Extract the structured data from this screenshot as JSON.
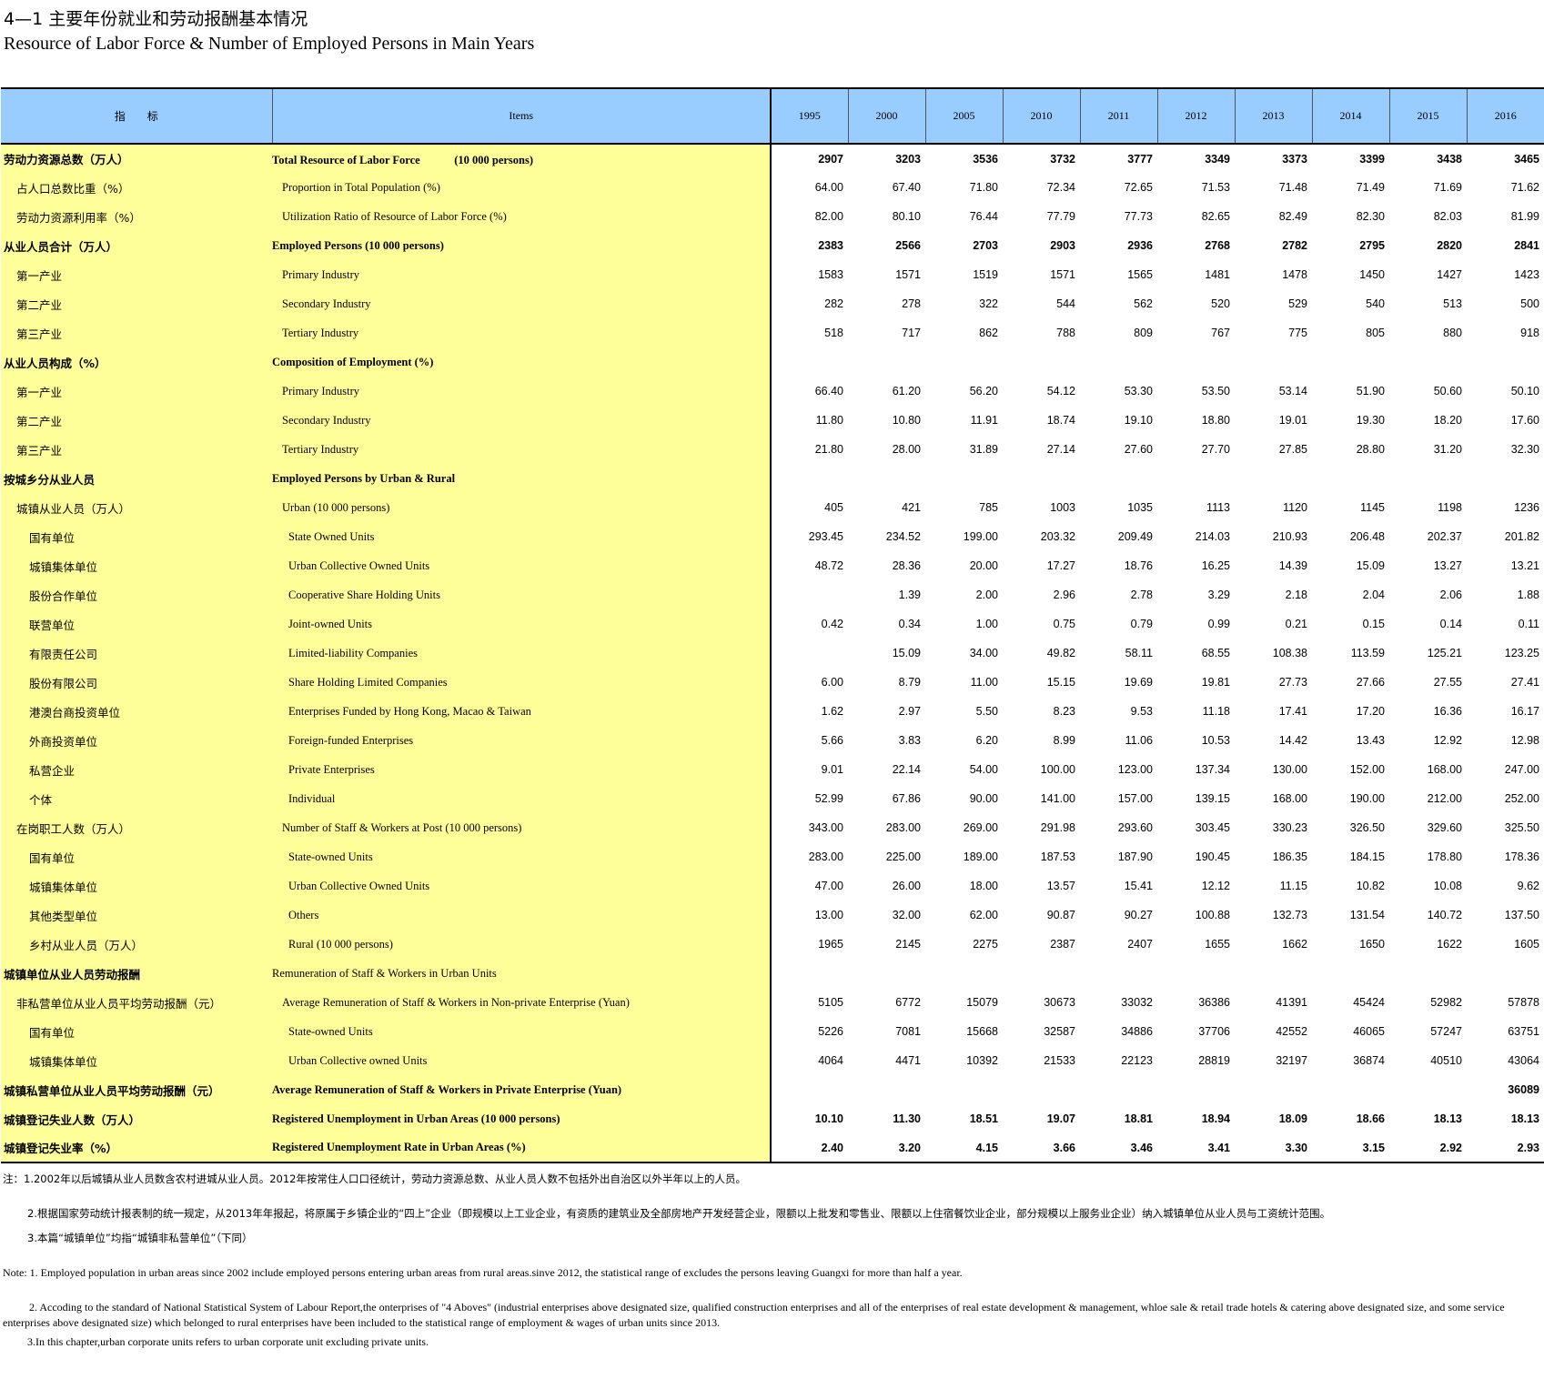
{
  "title_cn": "4—1  主要年份就业和劳动报酬基本情况",
  "title_en": "Resource of Labor Force & Number of Employed Persons in Main Years",
  "header": {
    "indicator_cn": "指　　标",
    "items_en": "Items",
    "years": [
      "1995",
      "2000",
      "2005",
      "2010",
      "2011",
      "2012",
      "2013",
      "2014",
      "2015",
      "2016"
    ]
  },
  "rows": [
    {
      "cn": "劳动力资源总数（万人）",
      "en": "Total Resource of Labor Force　　　(10 000 persons)",
      "indent": 0,
      "bold": true,
      "values": [
        "2907",
        "3203",
        "3536",
        "3732",
        "3777",
        "3349",
        "3373",
        "3399",
        "3438",
        "3465"
      ]
    },
    {
      "cn": "占人口总数比重（%）",
      "en": "Proportion in Total Population (%)",
      "indent": 1,
      "bold": false,
      "values": [
        "64.00",
        "67.40",
        "71.80",
        "72.34",
        "72.65",
        "71.53",
        "71.48",
        "71.49",
        "71.69",
        "71.62"
      ]
    },
    {
      "cn": "劳动力资源利用率（%）",
      "en": "Utilization Ratio of Resource of Labor Force (%)",
      "indent": 1,
      "bold": false,
      "values": [
        "82.00",
        "80.10",
        "76.44",
        "77.79",
        "77.73",
        "82.65",
        "82.49",
        "82.30",
        "82.03",
        "81.99"
      ]
    },
    {
      "cn": "从业人员合计（万人）",
      "en": "Employed Persons (10 000 persons)",
      "indent": 0,
      "bold": true,
      "values": [
        "2383",
        "2566",
        "2703",
        "2903",
        "2936",
        "2768",
        "2782",
        "2795",
        "2820",
        "2841"
      ]
    },
    {
      "cn": "第一产业",
      "en": "Primary Industry",
      "indent": 1,
      "bold": false,
      "values": [
        "1583",
        "1571",
        "1519",
        "1571",
        "1565",
        "1481",
        "1478",
        "1450",
        "1427",
        "1423"
      ]
    },
    {
      "cn": "第二产业",
      "en": "Secondary Industry",
      "indent": 1,
      "bold": false,
      "values": [
        "282",
        "278",
        "322",
        "544",
        "562",
        "520",
        "529",
        "540",
        "513",
        "500"
      ]
    },
    {
      "cn": "第三产业",
      "en": "Tertiary Industry",
      "indent": 1,
      "bold": false,
      "values": [
        "518",
        "717",
        "862",
        "788",
        "809",
        "767",
        "775",
        "805",
        "880",
        "918"
      ]
    },
    {
      "cn": "从业人员构成（%）",
      "en": "Composition of Employment (%)",
      "indent": 0,
      "bold": true,
      "values": [
        "",
        "",
        "",
        "",
        "",
        "",
        "",
        "",
        "",
        ""
      ]
    },
    {
      "cn": "第一产业",
      "en": "Primary Industry",
      "indent": 1,
      "bold": false,
      "values": [
        "66.40",
        "61.20",
        "56.20",
        "54.12",
        "53.30",
        "53.50",
        "53.14",
        "51.90",
        "50.60",
        "50.10"
      ]
    },
    {
      "cn": "第二产业",
      "en": "Secondary Industry",
      "indent": 1,
      "bold": false,
      "values": [
        "11.80",
        "10.80",
        "11.91",
        "18.74",
        "19.10",
        "18.80",
        "19.01",
        "19.30",
        "18.20",
        "17.60"
      ]
    },
    {
      "cn": "第三产业",
      "en": "Tertiary Industry",
      "indent": 1,
      "bold": false,
      "values": [
        "21.80",
        "28.00",
        "31.89",
        "27.14",
        "27.60",
        "27.70",
        "27.85",
        "28.80",
        "31.20",
        "32.30"
      ]
    },
    {
      "cn": "按城乡分从业人员",
      "en": "Employed Persons by Urban & Rural",
      "indent": 0,
      "bold": true,
      "values": [
        "",
        "",
        "",
        "",
        "",
        "",
        "",
        "",
        "",
        ""
      ]
    },
    {
      "cn": "城镇从业人员（万人）",
      "en": "Urban (10 000 persons)",
      "indent": 1,
      "bold": false,
      "values": [
        "405",
        "421",
        "785",
        "1003",
        "1035",
        "1113",
        "1120",
        "1145",
        "1198",
        "1236"
      ]
    },
    {
      "cn": "国有单位",
      "en": "State Owned Units",
      "indent": 2,
      "bold": false,
      "values": [
        "293.45",
        "234.52",
        "199.00",
        "203.32",
        "209.49",
        "214.03",
        "210.93",
        "206.48",
        "202.37",
        "201.82"
      ]
    },
    {
      "cn": "城镇集体单位",
      "en": "Urban Collective Owned Units",
      "indent": 2,
      "bold": false,
      "values": [
        "48.72",
        "28.36",
        "20.00",
        "17.27",
        "18.76",
        "16.25",
        "14.39",
        "15.09",
        "13.27",
        "13.21"
      ]
    },
    {
      "cn": "股份合作单位",
      "en": "Cooperative Share Holding Units",
      "indent": 2,
      "bold": false,
      "values": [
        "",
        "1.39",
        "2.00",
        "2.96",
        "2.78",
        "3.29",
        "2.18",
        "2.04",
        "2.06",
        "1.88"
      ]
    },
    {
      "cn": "联营单位",
      "en": "Joint-owned Units",
      "indent": 2,
      "bold": false,
      "values": [
        "0.42",
        "0.34",
        "1.00",
        "0.75",
        "0.79",
        "0.99",
        "0.21",
        "0.15",
        "0.14",
        "0.11"
      ]
    },
    {
      "cn": "有限责任公司",
      "en": "Limited-liability Companies",
      "indent": 2,
      "bold": false,
      "values": [
        "",
        "15.09",
        "34.00",
        "49.82",
        "58.11",
        "68.55",
        "108.38",
        "113.59",
        "125.21",
        "123.25"
      ]
    },
    {
      "cn": "股份有限公司",
      "en": "Share Holding Limited Companies",
      "indent": 2,
      "bold": false,
      "values": [
        "6.00",
        "8.79",
        "11.00",
        "15.15",
        "19.69",
        "19.81",
        "27.73",
        "27.66",
        "27.55",
        "27.41"
      ]
    },
    {
      "cn": "港澳台商投资单位",
      "en": "Enterprises Funded by Hong Kong, Macao & Taiwan",
      "indent": 2,
      "bold": false,
      "values": [
        "1.62",
        "2.97",
        "5.50",
        "8.23",
        "9.53",
        "11.18",
        "17.41",
        "17.20",
        "16.36",
        "16.17"
      ]
    },
    {
      "cn": "外商投资单位",
      "en": "Foreign-funded Enterprises",
      "indent": 2,
      "bold": false,
      "values": [
        "5.66",
        "3.83",
        "6.20",
        "8.99",
        "11.06",
        "10.53",
        "14.42",
        "13.43",
        "12.92",
        "12.98"
      ]
    },
    {
      "cn": "私营企业",
      "en": "Private Enterprises",
      "indent": 2,
      "bold": false,
      "values": [
        "9.01",
        "22.14",
        "54.00",
        "100.00",
        "123.00",
        "137.34",
        "130.00",
        "152.00",
        "168.00",
        "247.00"
      ]
    },
    {
      "cn": "个体",
      "en": "Individual",
      "indent": 2,
      "bold": false,
      "values": [
        "52.99",
        "67.86",
        "90.00",
        "141.00",
        "157.00",
        "139.15",
        "168.00",
        "190.00",
        "212.00",
        "252.00"
      ]
    },
    {
      "cn": "在岗职工人数（万人）",
      "en": "Number of Staff & Workers at Post (10 000 persons)",
      "indent": 1,
      "bold": false,
      "values": [
        "343.00",
        "283.00",
        "269.00",
        "291.98",
        "293.60",
        "303.45",
        "330.23",
        "326.50",
        "329.60",
        "325.50"
      ]
    },
    {
      "cn": "国有单位",
      "en": "State-owned Units",
      "indent": 2,
      "bold": false,
      "values": [
        "283.00",
        "225.00",
        "189.00",
        "187.53",
        "187.90",
        "190.45",
        "186.35",
        "184.15",
        "178.80",
        "178.36"
      ]
    },
    {
      "cn": "城镇集体单位",
      "en": "Urban Collective Owned Units",
      "indent": 2,
      "bold": false,
      "values": [
        "47.00",
        "26.00",
        "18.00",
        "13.57",
        "15.41",
        "12.12",
        "11.15",
        "10.82",
        "10.08",
        "9.62"
      ]
    },
    {
      "cn": "其他类型单位",
      "en": "Others",
      "indent": 2,
      "bold": false,
      "values": [
        "13.00",
        "32.00",
        "62.00",
        "90.87",
        "90.27",
        "100.88",
        "132.73",
        "131.54",
        "140.72",
        "137.50"
      ]
    },
    {
      "cn": "乡村从业人员（万人）",
      "en": "Rural  (10 000 persons)",
      "indent": 2,
      "bold": false,
      "values": [
        "1965",
        "2145",
        "2275",
        "2387",
        "2407",
        "1655",
        "1662",
        "1650",
        "1622",
        "1605"
      ]
    },
    {
      "cn": "城镇单位从业人员劳动报酬",
      "en": "Remuneration of Staff & Workers in Urban Units",
      "indent": 0,
      "bold": true,
      "enplain": true,
      "values": [
        "",
        "",
        "",
        "",
        "",
        "",
        "",
        "",
        "",
        ""
      ]
    },
    {
      "cn": "非私营单位从业人员平均劳动报酬（元）",
      "en": "Average Remuneration of Staff & Workers in Non-private Enterprise (Yuan)",
      "indent": 1,
      "bold": false,
      "values": [
        "5105",
        "6772",
        "15079",
        "30673",
        "33032",
        "36386",
        "41391",
        "45424",
        "52982",
        "57878"
      ]
    },
    {
      "cn": "国有单位",
      "en": "State-owned Units",
      "indent": 2,
      "bold": false,
      "values": [
        "5226",
        "7081",
        "15668",
        "32587",
        "34886",
        "37706",
        "42552",
        "46065",
        "57247",
        "63751"
      ]
    },
    {
      "cn": "城镇集体单位",
      "en": "Urban Collective owned Units",
      "indent": 2,
      "bold": false,
      "values": [
        "4064",
        "4471",
        "10392",
        "21533",
        "22123",
        "28819",
        "32197",
        "36874",
        "40510",
        "43064"
      ]
    },
    {
      "cn": "城镇私营单位从业人员平均劳动报酬（元）",
      "en": "Average Remuneration of Staff & Workers in Private Enterprise (Yuan)",
      "indent": 0,
      "bold": true,
      "values": [
        "",
        "",
        "",
        "",
        "",
        "",
        "",
        "",
        "",
        "36089"
      ]
    },
    {
      "cn": "城镇登记失业人数（万人）",
      "en": "Registered Unemployment in Urban Areas (10 000 persons)",
      "indent": 0,
      "bold": true,
      "values": [
        "10.10",
        "11.30",
        "18.51",
        "19.07",
        "18.81",
        "18.94",
        "18.09",
        "18.66",
        "18.13",
        "18.13"
      ]
    },
    {
      "cn": "城镇登记失业率（%）",
      "en": "Registered Unemployment Rate in Urban Areas (%)",
      "indent": 0,
      "bold": true,
      "values": [
        "2.40",
        "3.20",
        "4.15",
        "3.66",
        "3.46",
        "3.41",
        "3.30",
        "3.15",
        "2.92",
        "2.93"
      ]
    }
  ],
  "notes": {
    "cn1": "注：1.2002年以后城镇从业人员数含农村进城从业人员。2012年按常住人口口径统计，劳动力资源总数、从业人员人数不包括外出自治区以外半年以上的人员。",
    "cn2": "2.根据国家劳动统计报表制的统一规定，从2013年年报起，将原属于乡镇企业的“四上”企业（即规模以上工业企业，有资质的建筑业及全部房地产开发经营企业，限额以上批发和零售业、限额以上住宿餐饮业企业，部分规模以上服务业企业）纳入城镇单位从业人员与工资统计范围。",
    "cn3": "3.本篇“城镇单位”均指“城镇非私营单位”（下同）",
    "en1": "Note: 1. Employed population in urban areas since 2002 include employed persons entering urban areas from rural areas.sinve 2012, the statistical range of excludes the persons leaving Guangxi for more than half a year.",
    "en2": "2. Accoding to the standard of National Statistical System of Labour Report,the onterprises of \"4 Aboves\" (industrial enterprises above designated size, qualified construction enterprises and all of the enterprises of real estate development & management, whloe sale & retail trade hotels & catering above designated size, and some service enterprises above designated size) which belonged to rural enterprises have been included to the statistical range of employment & wages of urban units since 2013.",
    "en3": "3.In this chapter,urban corporate units refers to urban corporate unit excluding private units."
  },
  "colors": {
    "header_bg": "#99ccff",
    "label_bg": "#ffff99"
  }
}
